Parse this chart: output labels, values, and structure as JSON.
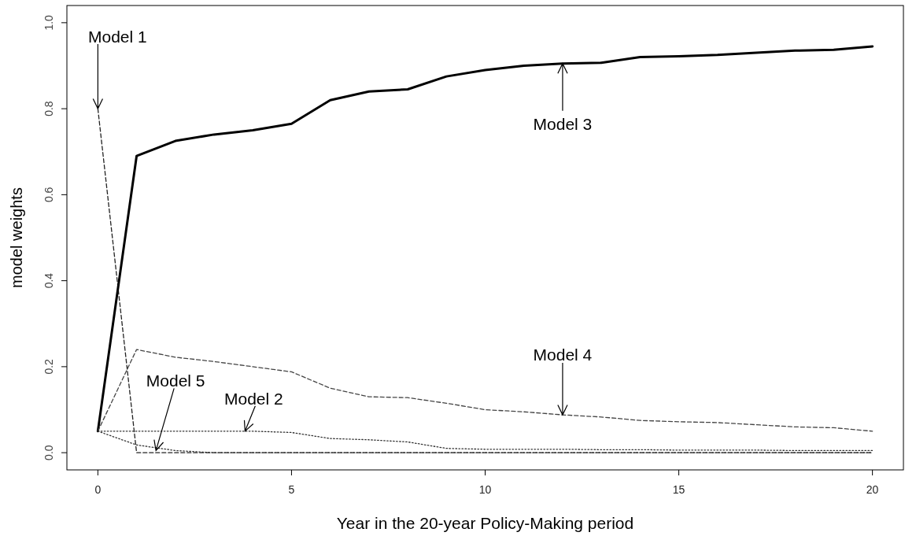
{
  "chart_data": {
    "type": "line",
    "xlabel": "Year in the 20-year  Policy-Making  period",
    "ylabel": "model weights",
    "x": [
      0,
      1,
      2,
      3,
      4,
      5,
      6,
      7,
      8,
      9,
      10,
      11,
      12,
      13,
      14,
      15,
      16,
      17,
      18,
      19,
      20
    ],
    "xlim": [
      -0.8,
      20.8
    ],
    "xticks": [
      0,
      5,
      10,
      15,
      20
    ],
    "ylim": [
      -0.04,
      1.04
    ],
    "yticks": [
      {
        "value": 0,
        "label": "0.0"
      },
      {
        "value": 0.2,
        "label": "0.2"
      },
      {
        "value": 0.4,
        "label": "0.4"
      },
      {
        "value": 0.6,
        "label": "0.6"
      },
      {
        "value": 0.8,
        "label": "0.8"
      },
      {
        "value": 1,
        "label": "1.0"
      }
    ],
    "grid": false,
    "marker": "none",
    "series": [
      {
        "color": "#222222",
        "line_style": "dashed",
        "values": [
          0.8,
          0,
          0,
          0,
          0,
          0,
          0,
          0,
          0,
          0,
          0,
          0,
          0,
          0,
          0,
          0,
          0,
          0,
          0,
          0,
          0
        ]
      },
      {
        "color": "#333333",
        "line_style": "dotted",
        "values": [
          0.05,
          0.05,
          0.05,
          0.05,
          0.05,
          0.047,
          0.033,
          0.03,
          0.025,
          0.01,
          0.008,
          0.008,
          0.008,
          0.007,
          0.007,
          0.006,
          0.006,
          0.006,
          0.005,
          0.005,
          0.005
        ]
      },
      {
        "color": "#000000",
        "line_style": "solid",
        "values": [
          0.05,
          0.69,
          0.725,
          0.74,
          0.75,
          0.765,
          0.82,
          0.84,
          0.845,
          0.875,
          0.89,
          0.9,
          0.905,
          0.907,
          0.92,
          0.922,
          0.925,
          0.93,
          0.935,
          0.937,
          0.945
        ]
      },
      {
        "color": "#444444",
        "line_style": "dashed",
        "values": [
          0.05,
          0.24,
          0.222,
          0.212,
          0.2,
          0.188,
          0.15,
          0.13,
          0.128,
          0.115,
          0.1,
          0.095,
          0.088,
          0.083,
          0.075,
          0.072,
          0.07,
          0.065,
          0.06,
          0.058,
          0.05
        ]
      },
      {
        "color": "#333333",
        "line_style": "dotted",
        "values": [
          0.05,
          0.018,
          0.005,
          0,
          0,
          0,
          0,
          0,
          0,
          0,
          0,
          0,
          0,
          0,
          0,
          0,
          0,
          0,
          0,
          0,
          0
        ]
      }
    ],
    "annotations": [
      {
        "text": "Model 1",
        "x": 0,
        "y": 0.8
      },
      {
        "text": "Model 3",
        "x": 12,
        "y": 0.905
      },
      {
        "text": "Model 4",
        "x": 12,
        "y": 0.088
      },
      {
        "text": "Model 5",
        "x": 1.5,
        "y": 0.005
      },
      {
        "text": "Model 2",
        "x": 3.8,
        "y": 0.05
      }
    ]
  }
}
